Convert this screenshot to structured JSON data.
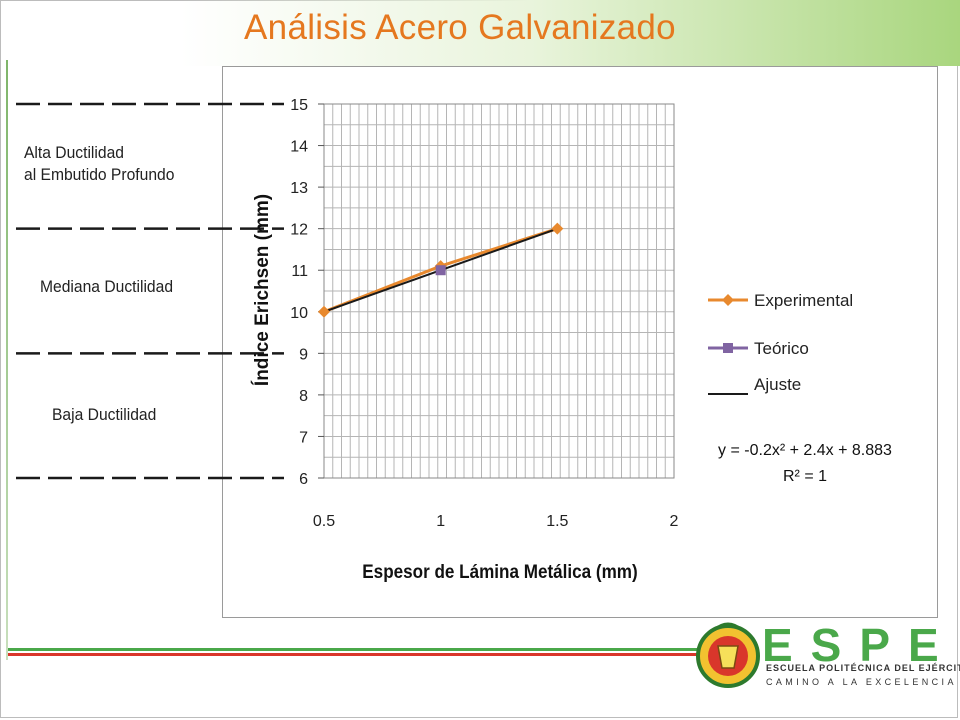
{
  "slide": {
    "title": "Análisis Acero Galvanizado"
  },
  "zones": [
    {
      "label_line1": "Alta Ductilidad",
      "label_line2": "al Embutido Profundo"
    },
    {
      "label_line1": "Mediana Ductilidad",
      "label_line2": ""
    },
    {
      "label_line1": "Baja Ductilidad",
      "label_line2": ""
    }
  ],
  "chart_data": {
    "type": "line",
    "title": "",
    "xlabel": "Espesor de Lámina Metálica (mm)",
    "ylabel": "Índice Erichsen (mm)",
    "xlim": [
      0.5,
      2
    ],
    "ylim": [
      6,
      15
    ],
    "xticks": [
      "0.5",
      "1",
      "1.5",
      "2"
    ],
    "yticks": [
      "6",
      "7",
      "8",
      "9",
      "10",
      "11",
      "12",
      "13",
      "14",
      "15"
    ],
    "grid": true,
    "legend_position": "right",
    "series": [
      {
        "name": "Experimental",
        "x": [
          0.5,
          1,
          1.5
        ],
        "y": [
          10,
          11.1,
          12
        ],
        "color": "#e8892e",
        "marker": "diamond"
      },
      {
        "name": "Teórico",
        "x": [
          1
        ],
        "y": [
          11
        ],
        "color": "#8064a2",
        "marker": "square"
      },
      {
        "name": "Ajuste",
        "x": [
          0.5,
          1.5
        ],
        "y": [
          10,
          12
        ],
        "color": "#1a1a1a",
        "marker": "none"
      }
    ],
    "annotations": {
      "equation": "y = -0.2x² + 2.4x + 8.883",
      "r_squared": "R² = 1"
    }
  },
  "branding": {
    "logo_letters": "ESPE",
    "logo_line1": "ESCUELA POLITÉCNICA DEL EJÉRCITO",
    "logo_line2": "CAMINO A LA EXCELENCIA",
    "green": "#4aa84a",
    "red": "#d9362b",
    "orange": "#e5781f"
  }
}
